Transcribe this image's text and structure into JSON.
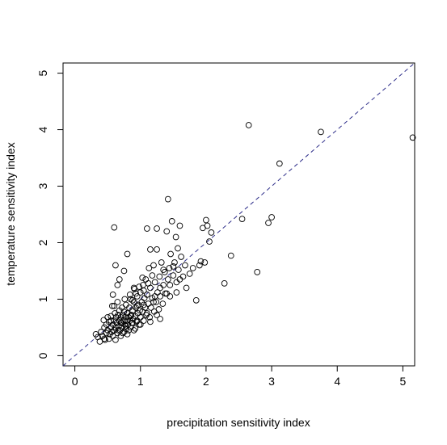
{
  "chart_data": {
    "type": "scatter",
    "title": "",
    "xlabel": "precipitation sensitivity index",
    "ylabel": "temperature sensitivity index",
    "xlim": [
      -0.18,
      5.18
    ],
    "ylim": [
      -0.18,
      5.18
    ],
    "x_ticks": [
      0,
      1,
      2,
      3,
      4,
      5
    ],
    "y_ticks": [
      0,
      1,
      2,
      3,
      4,
      5
    ],
    "grid": false,
    "legend": "none",
    "point_marker": "open-circle",
    "reference_line": {
      "slope": 1,
      "intercept": 0,
      "style": "dashed",
      "color": "#2e2e8a"
    },
    "points": [
      [
        0.32,
        0.38
      ],
      [
        0.35,
        0.33
      ],
      [
        0.38,
        0.25
      ],
      [
        0.4,
        0.42
      ],
      [
        0.42,
        0.35
      ],
      [
        0.44,
        0.63
      ],
      [
        0.45,
        0.5
      ],
      [
        0.46,
        0.28
      ],
      [
        0.48,
        0.4
      ],
      [
        0.48,
        0.55
      ],
      [
        0.5,
        0.68
      ],
      [
        0.5,
        0.45
      ],
      [
        0.52,
        0.3
      ],
      [
        0.52,
        0.6
      ],
      [
        0.53,
        0.38
      ],
      [
        0.55,
        0.5
      ],
      [
        0.55,
        0.7
      ],
      [
        0.56,
        0.42
      ],
      [
        0.57,
        0.88
      ],
      [
        0.58,
        1.08
      ],
      [
        0.58,
        0.55
      ],
      [
        0.58,
        0.35
      ],
      [
        0.6,
        0.62
      ],
      [
        0.6,
        0.45
      ],
      [
        0.61,
        0.75
      ],
      [
        0.62,
        0.5
      ],
      [
        0.62,
        0.28
      ],
      [
        0.63,
        0.68
      ],
      [
        0.64,
        0.58
      ],
      [
        0.65,
        0.4
      ],
      [
        0.65,
        0.95
      ],
      [
        0.66,
        0.72
      ],
      [
        0.67,
        0.52
      ],
      [
        0.68,
        0.62
      ],
      [
        0.68,
        0.8
      ],
      [
        0.69,
        0.45
      ],
      [
        0.7,
        0.68
      ],
      [
        0.7,
        0.35
      ],
      [
        0.71,
        0.58
      ],
      [
        0.72,
        0.85
      ],
      [
        0.72,
        0.5
      ],
      [
        0.73,
        0.72
      ],
      [
        0.74,
        0.62
      ],
      [
        0.75,
        0.42
      ],
      [
        0.75,
        0.78
      ],
      [
        0.76,
        0.55
      ],
      [
        0.77,
        0.68
      ],
      [
        0.78,
        0.9
      ],
      [
        0.78,
        0.48
      ],
      [
        0.79,
        0.62
      ],
      [
        0.8,
        0.75
      ],
      [
        0.8,
        0.38
      ],
      [
        0.81,
        0.55
      ],
      [
        0.82,
        0.68
      ],
      [
        0.83,
        0.85
      ],
      [
        0.84,
        0.62
      ],
      [
        0.85,
        0.5
      ],
      [
        0.85,
        1.0
      ],
      [
        0.86,
        0.72
      ],
      [
        0.87,
        0.58
      ],
      [
        0.88,
        0.8
      ],
      [
        0.89,
        0.65
      ],
      [
        0.9,
        0.95
      ],
      [
        0.9,
        0.45
      ],
      [
        0.91,
        1.18
      ],
      [
        0.92,
        0.7
      ],
      [
        0.93,
        0.85
      ],
      [
        0.94,
        0.6
      ],
      [
        0.95,
        1.05
      ],
      [
        0.96,
        0.75
      ],
      [
        0.97,
        0.9
      ],
      [
        0.98,
        0.55
      ],
      [
        0.99,
        0.8
      ],
      [
        1.0,
        1.12
      ],
      [
        1.0,
        0.68
      ],
      [
        1.02,
        0.95
      ],
      [
        1.03,
        0.78
      ],
      [
        1.04,
        1.25
      ],
      [
        1.05,
        0.62
      ],
      [
        1.06,
        1.02
      ],
      [
        1.07,
        0.85
      ],
      [
        1.08,
        1.35
      ],
      [
        1.09,
        0.72
      ],
      [
        1.1,
        1.08
      ],
      [
        1.12,
        0.92
      ],
      [
        1.13,
        1.55
      ],
      [
        1.14,
        0.68
      ],
      [
        1.15,
        1.2
      ],
      [
        1.16,
        0.85
      ],
      [
        1.18,
        1.02
      ],
      [
        1.2,
        1.6
      ],
      [
        1.21,
        0.78
      ],
      [
        1.22,
        1.3
      ],
      [
        1.24,
        0.95
      ],
      [
        1.25,
        1.88
      ],
      [
        1.26,
        1.12
      ],
      [
        1.28,
        0.82
      ],
      [
        1.29,
        1.4
      ],
      [
        1.3,
        1.05
      ],
      [
        1.32,
        1.65
      ],
      [
        1.34,
        0.92
      ],
      [
        1.35,
        1.25
      ],
      [
        1.37,
        1.48
      ],
      [
        1.38,
        1.1
      ],
      [
        1.4,
        2.2
      ],
      [
        1.42,
        1.35
      ],
      [
        1.44,
        1.55
      ],
      [
        1.45,
        1.05
      ],
      [
        1.46,
        1.8
      ],
      [
        1.48,
        2.38
      ],
      [
        1.5,
        1.42
      ],
      [
        1.52,
        1.65
      ],
      [
        1.54,
        2.1
      ],
      [
        1.55,
        1.3
      ],
      [
        1.57,
        1.9
      ],
      [
        1.58,
        1.52
      ],
      [
        1.6,
        2.3
      ],
      [
        1.62,
        1.75
      ],
      [
        1.65,
        1.4
      ],
      [
        1.68,
        1.6
      ],
      [
        1.7,
        1.2
      ],
      [
        1.75,
        1.45
      ],
      [
        1.8,
        1.55
      ],
      [
        1.85,
        0.98
      ],
      [
        1.9,
        1.6
      ],
      [
        1.92,
        1.67
      ],
      [
        1.95,
        2.26
      ],
      [
        1.98,
        1.65
      ],
      [
        2.0,
        2.4
      ],
      [
        2.02,
        2.3
      ],
      [
        2.05,
        2.02
      ],
      [
        2.08,
        2.18
      ],
      [
        0.6,
        2.27
      ],
      [
        0.62,
        1.6
      ],
      [
        0.65,
        1.25
      ],
      [
        0.68,
        1.35
      ],
      [
        0.75,
        1.5
      ],
      [
        0.8,
        1.8
      ],
      [
        1.1,
        2.25
      ],
      [
        1.15,
        1.88
      ],
      [
        1.25,
        2.25
      ],
      [
        1.42,
        2.77
      ],
      [
        2.28,
        1.28
      ],
      [
        2.38,
        1.77
      ],
      [
        2.55,
        2.42
      ],
      [
        2.65,
        4.08
      ],
      [
        2.78,
        1.48
      ],
      [
        2.95,
        2.35
      ],
      [
        3.0,
        2.45
      ],
      [
        3.12,
        3.4
      ],
      [
        3.75,
        3.96
      ],
      [
        5.15,
        3.86
      ],
      [
        0.88,
        0.58
      ],
      [
        0.92,
        0.48
      ],
      [
        0.95,
        0.88
      ],
      [
        1.0,
        0.55
      ],
      [
        1.05,
        0.9
      ],
      [
        1.1,
        0.75
      ],
      [
        1.15,
        0.6
      ],
      [
        1.2,
        0.95
      ],
      [
        1.25,
        0.72
      ],
      [
        1.3,
        0.65
      ],
      [
        0.45,
        0.3
      ],
      [
        0.55,
        0.62
      ],
      [
        0.7,
        0.58
      ],
      [
        0.85,
        0.7
      ],
      [
        0.95,
        0.62
      ],
      [
        1.05,
        1.15
      ],
      [
        1.12,
        1.28
      ],
      [
        1.18,
        1.42
      ],
      [
        1.22,
        1.05
      ],
      [
        1.3,
        1.2
      ],
      [
        1.35,
        1.52
      ],
      [
        1.4,
        1.1
      ],
      [
        1.45,
        1.25
      ],
      [
        1.5,
        1.58
      ],
      [
        1.55,
        1.12
      ],
      [
        1.6,
        1.35
      ],
      [
        0.78,
        0.52
      ],
      [
        0.82,
        0.45
      ],
      [
        0.88,
        0.98
      ],
      [
        0.93,
        1.1
      ],
      [
        0.98,
        1.22
      ],
      [
        1.03,
        1.38
      ],
      [
        0.6,
        0.88
      ],
      [
        0.66,
        0.45
      ],
      [
        0.73,
        0.4
      ],
      [
        0.76,
        1.0
      ],
      [
        0.84,
        1.08
      ],
      [
        0.9,
        1.2
      ]
    ]
  }
}
